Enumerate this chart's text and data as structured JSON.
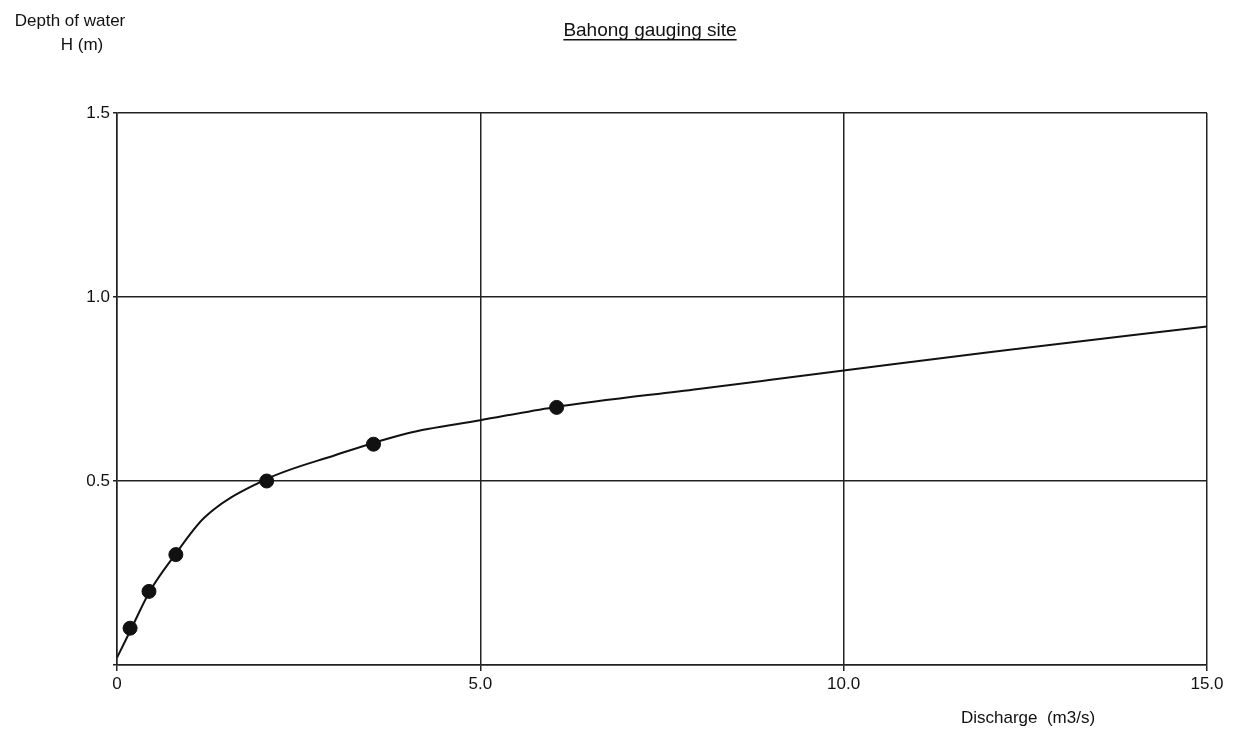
{
  "chart_data": {
    "type": "scatter",
    "title": "Bahong gauging site",
    "xlabel": "Discharge  (m3/s)",
    "ylabel": "Depth of water\nH (m)",
    "series": [
      {
        "type": "scatter",
        "color": "#111111",
        "x": [
          0.18,
          0.44,
          0.81,
          2.06,
          3.53,
          6.05
        ],
        "values": [
          0.1,
          0.2,
          0.3,
          0.5,
          0.6,
          0.7
        ],
        "marker": "circle"
      },
      {
        "type": "line",
        "color": "#111111",
        "x": [
          0,
          0.2,
          0.45,
          0.8,
          1.2,
          2,
          3,
          4,
          5,
          6,
          8,
          10,
          12,
          15
        ],
        "values": [
          0.02,
          0.1,
          0.2,
          0.3,
          0.4,
          0.5,
          0.57,
          0.63,
          0.665,
          0.7,
          0.75,
          0.8,
          0.85,
          0.92
        ],
        "marker": "none",
        "line_style": "solid"
      }
    ],
    "xlim": [
      0,
      15
    ],
    "ylim": [
      0,
      1.5
    ],
    "xticks": [
      {
        "value": 0,
        "label": "0"
      },
      {
        "value": 5,
        "label": "5.0"
      },
      {
        "value": 10,
        "label": "10.0"
      },
      {
        "value": 15,
        "label": "15.0"
      }
    ],
    "yticks": [
      {
        "value": 0,
        "label": null
      },
      {
        "value": 0.5,
        "label": "0.5"
      },
      {
        "value": 1,
        "label": "1.0"
      },
      {
        "value": 1.5,
        "label": "1.5"
      }
    ],
    "grid": true,
    "legend": false
  }
}
